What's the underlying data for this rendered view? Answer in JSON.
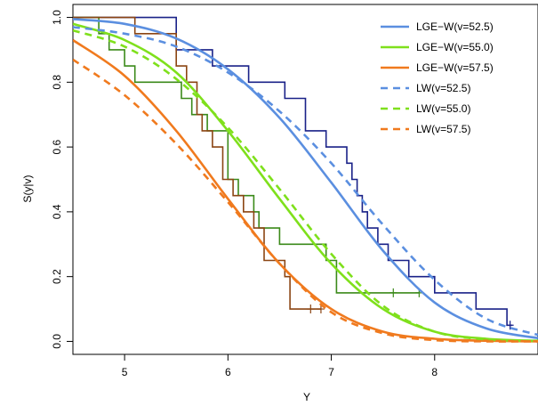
{
  "chart_data": {
    "type": "line",
    "xlabel": "Y",
    "ylabel": "S(y|v)",
    "xlim": [
      4.5,
      9.0
    ],
    "ylim": [
      -0.04,
      1.04
    ],
    "x_ticks": [
      "5",
      "6",
      "7",
      "8"
    ],
    "y_ticks": [
      "0.0",
      "0.2",
      "0.4",
      "0.6",
      "0.8",
      "1.0"
    ],
    "grid": false,
    "legend_position": "top-right",
    "series": [
      {
        "name": "LGE−W(v=52.5)",
        "style": "solid",
        "color": "#5b8fe0",
        "x": [
          4.5,
          5.0,
          5.5,
          6.0,
          6.5,
          7.0,
          7.5,
          8.0,
          8.5,
          9.0
        ],
        "y": [
          0.995,
          0.98,
          0.935,
          0.84,
          0.69,
          0.49,
          0.28,
          0.12,
          0.04,
          0.01
        ]
      },
      {
        "name": "LGE−W(v=55.0)",
        "style": "solid",
        "color": "#7fe01c",
        "x": [
          4.5,
          5.0,
          5.5,
          6.0,
          6.5,
          7.0,
          7.5,
          8.0,
          8.5,
          9.0
        ],
        "y": [
          0.98,
          0.93,
          0.83,
          0.65,
          0.44,
          0.24,
          0.1,
          0.03,
          0.008,
          0.002
        ]
      },
      {
        "name": "LGE−W(v=57.5)",
        "style": "solid",
        "color": "#f07a1e",
        "x": [
          4.5,
          5.0,
          5.5,
          6.0,
          6.5,
          7.0,
          7.5,
          8.0,
          8.5,
          9.0
        ],
        "y": [
          0.93,
          0.82,
          0.65,
          0.44,
          0.24,
          0.1,
          0.03,
          0.008,
          0.002,
          0.0
        ]
      },
      {
        "name": "LW(v=52.5)",
        "style": "dashed",
        "color": "#5b8fe0",
        "x": [
          4.5,
          5.0,
          5.5,
          6.0,
          6.5,
          7.0,
          7.5,
          8.0,
          8.5,
          9.0
        ],
        "y": [
          0.97,
          0.95,
          0.91,
          0.83,
          0.71,
          0.55,
          0.36,
          0.19,
          0.07,
          0.02
        ]
      },
      {
        "name": "LW(v=55.0)",
        "style": "dashed",
        "color": "#7fe01c",
        "x": [
          4.5,
          5.0,
          5.5,
          6.0,
          6.5,
          7.0,
          7.5,
          8.0,
          8.5,
          9.0
        ],
        "y": [
          0.96,
          0.91,
          0.81,
          0.66,
          0.47,
          0.27,
          0.11,
          0.03,
          0.006,
          0.001
        ]
      },
      {
        "name": "LW(v=57.5)",
        "style": "dashed",
        "color": "#f07a1e",
        "x": [
          4.5,
          5.0,
          5.5,
          6.0,
          6.5,
          7.0,
          7.5,
          8.0,
          8.5,
          9.0
        ],
        "y": [
          0.87,
          0.76,
          0.61,
          0.43,
          0.24,
          0.09,
          0.025,
          0.004,
          0.0,
          0.0
        ]
      }
    ],
    "kaplan_meier": [
      {
        "group": "v=52.5",
        "color": "#1a2288",
        "x": [
          4.5,
          5.5,
          5.5,
          5.85,
          5.85,
          6.2,
          6.2,
          6.55,
          6.55,
          6.75,
          6.75,
          6.95,
          6.95,
          7.15,
          7.15,
          7.2,
          7.2,
          7.25,
          7.25,
          7.3,
          7.3,
          7.35,
          7.35,
          7.45,
          7.45,
          7.55,
          7.55,
          7.75,
          7.75,
          7.85,
          7.85,
          8.0,
          8.0,
          8.4,
          8.4,
          8.7,
          8.7,
          8.75
        ],
        "y": [
          1.0,
          1.0,
          0.9,
          0.9,
          0.85,
          0.85,
          0.8,
          0.8,
          0.75,
          0.75,
          0.65,
          0.65,
          0.6,
          0.6,
          0.55,
          0.55,
          0.5,
          0.5,
          0.45,
          0.45,
          0.4,
          0.4,
          0.35,
          0.35,
          0.3,
          0.3,
          0.25,
          0.25,
          0.2,
          0.2,
          0.2,
          0.2,
          0.15,
          0.15,
          0.1,
          0.1,
          0.05,
          0.05
        ],
        "censored": [
          [
            8.73,
            0.05
          ]
        ]
      },
      {
        "group": "v=55.0",
        "color": "#3b8a1a",
        "x": [
          4.5,
          4.75,
          4.75,
          4.85,
          4.85,
          5.0,
          5.0,
          5.1,
          5.1,
          5.55,
          5.55,
          5.65,
          5.65,
          5.8,
          5.8,
          6.0,
          6.0,
          6.1,
          6.1,
          6.25,
          6.25,
          6.3,
          6.3,
          6.5,
          6.5,
          6.95,
          6.95,
          7.05,
          7.05,
          7.6,
          7.6,
          7.85
        ],
        "y": [
          1.0,
          1.0,
          0.95,
          0.95,
          0.9,
          0.9,
          0.85,
          0.85,
          0.8,
          0.8,
          0.75,
          0.75,
          0.7,
          0.7,
          0.65,
          0.65,
          0.5,
          0.5,
          0.45,
          0.45,
          0.4,
          0.4,
          0.35,
          0.35,
          0.3,
          0.3,
          0.25,
          0.25,
          0.15,
          0.15,
          0.15,
          0.15
        ],
        "censored": [
          [
            7.6,
            0.15
          ],
          [
            7.85,
            0.15
          ]
        ]
      },
      {
        "group": "v=57.5",
        "color": "#8b4513",
        "x": [
          4.5,
          5.1,
          5.1,
          5.5,
          5.5,
          5.6,
          5.6,
          5.7,
          5.7,
          5.75,
          5.75,
          5.85,
          5.85,
          5.95,
          5.95,
          6.05,
          6.05,
          6.15,
          6.15,
          6.25,
          6.25,
          6.35,
          6.35,
          6.55,
          6.55,
          6.6,
          6.6,
          6.9
        ],
        "y": [
          1.0,
          1.0,
          0.95,
          0.95,
          0.85,
          0.85,
          0.8,
          0.8,
          0.7,
          0.7,
          0.65,
          0.65,
          0.6,
          0.6,
          0.5,
          0.5,
          0.45,
          0.45,
          0.4,
          0.4,
          0.35,
          0.35,
          0.25,
          0.25,
          0.2,
          0.2,
          0.1,
          0.1
        ],
        "censored": [
          [
            6.8,
            0.1
          ],
          [
            6.9,
            0.1
          ]
        ]
      }
    ]
  }
}
